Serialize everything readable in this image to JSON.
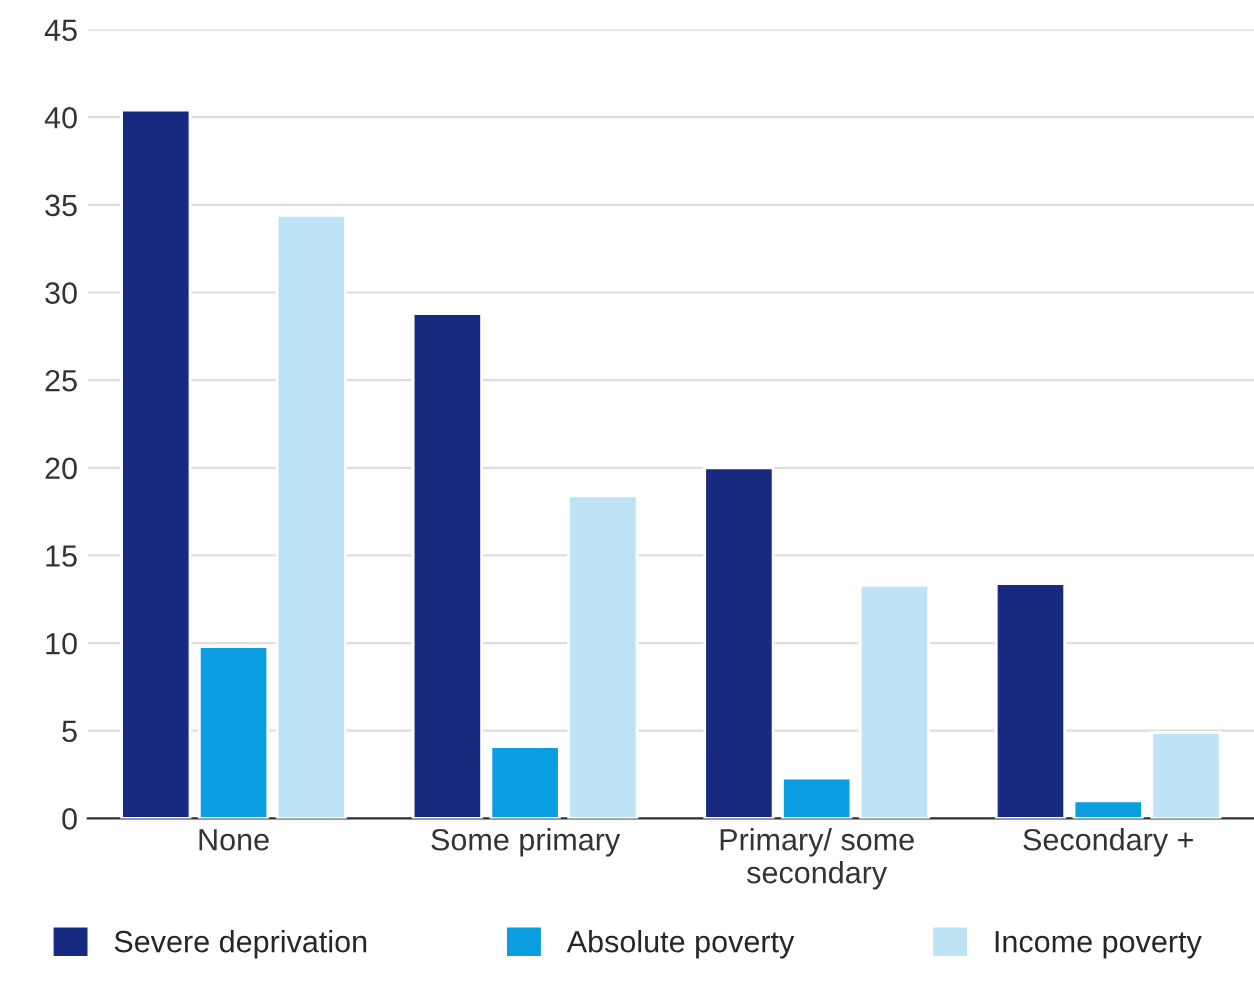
{
  "chart_data": {
    "type": "bar",
    "categories": [
      "None",
      "Some primary",
      "Primary/ some\nsecondary",
      "Secondary +"
    ],
    "series": [
      {
        "name": "Severe deprivation",
        "color": "#182a80",
        "values": [
          40.4,
          28.8,
          20.0,
          13.4
        ]
      },
      {
        "name": "Absolute poverty",
        "color": "#0a9de0",
        "values": [
          9.8,
          4.1,
          2.3,
          1.0
        ]
      },
      {
        "name": "Income poverty",
        "color": "#bde3f5",
        "values": [
          34.4,
          18.4,
          13.3,
          4.9
        ]
      }
    ],
    "ylim": [
      0,
      45
    ],
    "yticks": [
      0,
      5,
      10,
      15,
      20,
      25,
      30,
      35,
      40,
      45
    ],
    "grid": "y",
    "legend": "bottom"
  }
}
